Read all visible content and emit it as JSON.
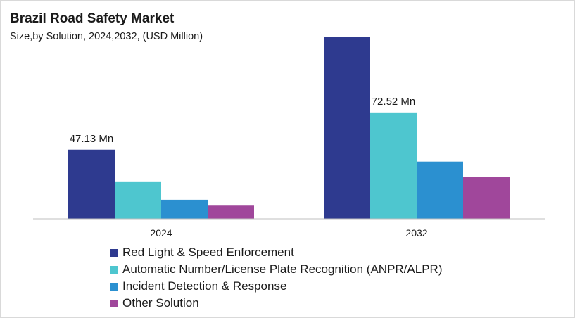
{
  "chart_data": {
    "type": "bar",
    "title": "Brazil Road Safety Market",
    "subtitle": "Size,by Solution, 2024,2032, (USD Million)",
    "categories": [
      "2024",
      "2032"
    ],
    "series": [
      {
        "name": "Red Light & Speed Enforcement",
        "color": "#2e3a8f",
        "values": [
          47.13,
          124.0
        ]
      },
      {
        "name": "Automatic Number/License Plate Recognition (ANPR/ALPR)",
        "color": "#4ec6cf",
        "values": [
          25.5,
          72.52
        ]
      },
      {
        "name": "Incident Detection & Response",
        "color": "#2b90d0",
        "values": [
          13.0,
          39.0
        ]
      },
      {
        "name": "Other Solution",
        "color": "#a0479b",
        "values": [
          9.0,
          28.5
        ]
      }
    ],
    "data_labels": [
      {
        "series": 0,
        "category": 0,
        "text": "47.13 Mn"
      },
      {
        "series": 1,
        "category": 1,
        "text": "72.52 Mn"
      }
    ],
    "ylim": [
      0,
      130
    ],
    "grid": false,
    "legend_position": "bottom-left"
  }
}
